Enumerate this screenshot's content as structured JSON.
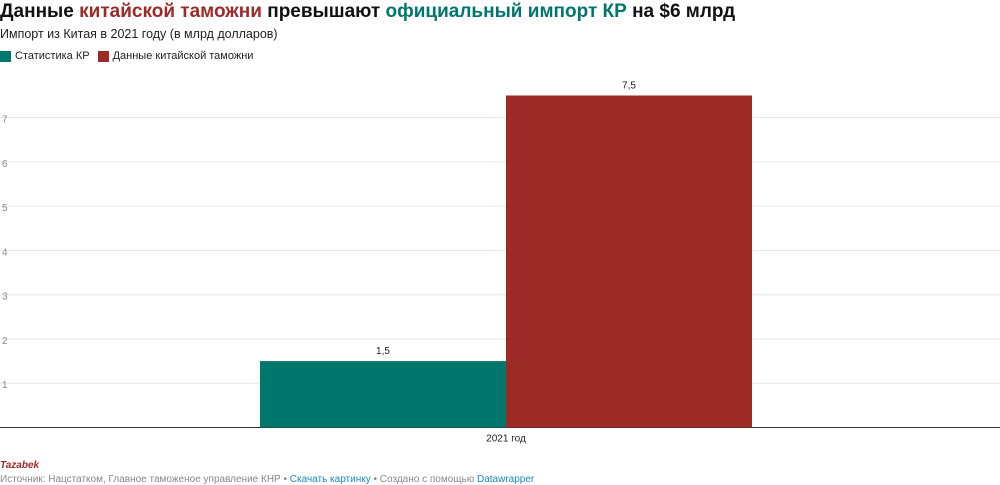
{
  "header": {
    "title_parts": [
      {
        "text": "Данные ",
        "color": "#111111"
      },
      {
        "text": "китайской таможни",
        "color": "#9c2b27"
      },
      {
        "text": " превышают ",
        "color": "#111111"
      },
      {
        "text": "официальный импорт КР",
        "color": "#00766d"
      },
      {
        "text": " на $6 млрд",
        "color": "#111111"
      }
    ],
    "subtitle": "Импорт из Китая в 2021 году (в млрд долларов)"
  },
  "chart_data": {
    "type": "bar",
    "categories": [
      "2021 год"
    ],
    "series": [
      {
        "name": "Статистика КР",
        "color": "#00766d",
        "values": [
          1.5
        ],
        "label": "1,5"
      },
      {
        "name": "Данные китайской таможни",
        "color": "#9c2b27",
        "values": [
          7.5
        ],
        "label": "7,5"
      }
    ],
    "yticks": [
      1,
      2,
      3,
      4,
      5,
      6,
      7
    ],
    "ylim": [
      0,
      7.5
    ],
    "grid": true,
    "legend_position": "top-left"
  },
  "footer": {
    "brand": "Tazabek",
    "brand_color": "#9c2b27",
    "source_text": "Источник: Нацстатком, Главное таможеное управление КНР • ",
    "download_link": "Скачать картинку",
    "separator": " • Создано с помощью ",
    "tool_link": "Datawrapper"
  }
}
